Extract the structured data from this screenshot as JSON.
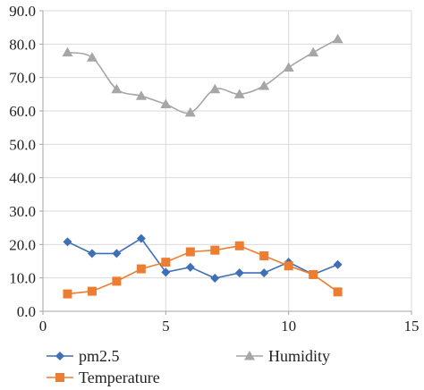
{
  "chart_data": {
    "type": "line",
    "title": "",
    "xlabel": "",
    "ylabel": "",
    "xlim": [
      0,
      15
    ],
    "ylim": [
      0,
      90
    ],
    "x_ticks": [
      0,
      5,
      10,
      15
    ],
    "y_ticks": [
      0,
      10,
      20,
      30,
      40,
      50,
      60,
      70,
      80,
      90
    ],
    "x_tick_labels": [
      "0",
      "5",
      "10",
      "15"
    ],
    "y_tick_labels": [
      "0.0",
      "10.0",
      "20.0",
      "30.0",
      "40.0",
      "50.0",
      "60.0",
      "70.0",
      "80.0",
      "90.0"
    ],
    "grid": "horizontal and vertical major gridlines",
    "legend_position": "bottom",
    "x": [
      1,
      2,
      3,
      4,
      5,
      6,
      7,
      8,
      9,
      10,
      11,
      12
    ],
    "series": [
      {
        "name": "pm2.5",
        "color": "#3f6fb5",
        "marker": "diamond",
        "smooth": false,
        "values": [
          20.8,
          17.3,
          17.3,
          21.8,
          11.7,
          13.2,
          9.9,
          11.5,
          11.5,
          14.7,
          11.0,
          14.0
        ]
      },
      {
        "name": "Humidity",
        "color": "#a6a6a6",
        "marker": "triangle",
        "smooth": true,
        "values": [
          77.5,
          76.0,
          66.5,
          64.5,
          62.0,
          59.5,
          66.5,
          65.0,
          67.5,
          73.0,
          77.5,
          81.5
        ]
      },
      {
        "name": "Temperature",
        "color": "#ed7d31",
        "marker": "square",
        "smooth": false,
        "values": [
          5.2,
          6.0,
          9.0,
          12.7,
          14.7,
          17.8,
          18.3,
          19.6,
          16.6,
          13.6,
          11.0,
          5.8
        ]
      }
    ]
  }
}
